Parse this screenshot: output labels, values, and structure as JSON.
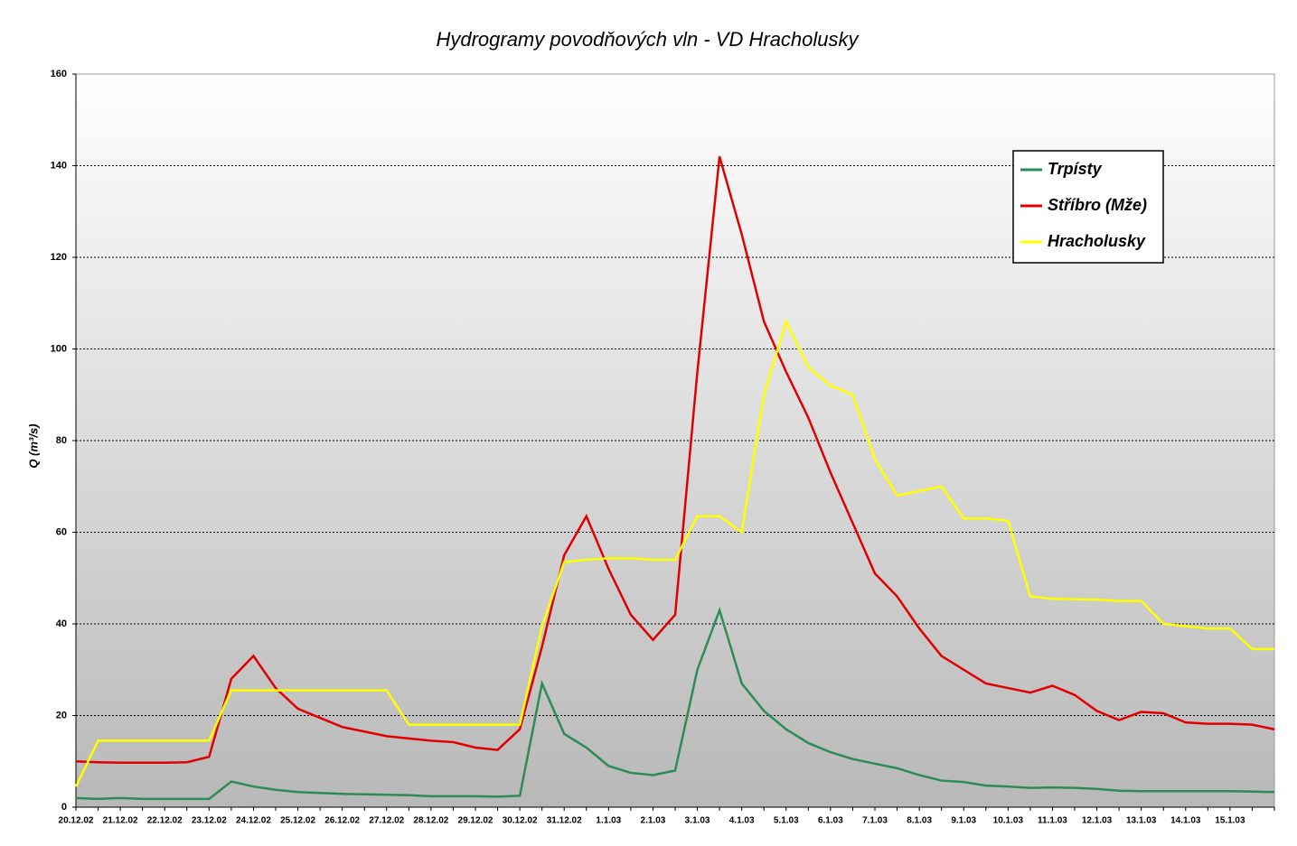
{
  "chart_data": {
    "type": "line",
    "title": "Hydrogramy povodňových vln - VD Hracholusky",
    "y_label": "Q (m³/s)",
    "categories": [
      "20.12.02",
      null,
      "21.12.02",
      null,
      "22.12.02",
      null,
      "23.12.02",
      null,
      "24.12.02",
      null,
      "25.12.02",
      null,
      "26.12.02",
      null,
      "27.12.02",
      null,
      "28.12.02",
      null,
      "29.12.02",
      null,
      "30.12.02",
      null,
      "31.12.02",
      null,
      "1.1.03",
      null,
      "2.1.03",
      null,
      "3.1.03",
      null,
      "4.1.03",
      null,
      "5.1.03",
      null,
      "6.1.03",
      null,
      "7.1.03",
      null,
      "8.1.03",
      null,
      "9.1.03",
      null,
      "10.1.03",
      null,
      "11.1.03",
      null,
      "12.1.03",
      null,
      "13.1.03",
      null,
      "14.1.03",
      null,
      "15.1.03",
      null,
      null
    ],
    "series": [
      {
        "name": "Trpísty",
        "color": "#2e8b57",
        "values": [
          2,
          1.8,
          2,
          1.8,
          1.8,
          1.8,
          1.8,
          5.6,
          4.5,
          3.8,
          3.3,
          3.1,
          2.9,
          2.8,
          2.7,
          2.6,
          2.4,
          2.4,
          2.4,
          2.3,
          2.5,
          27,
          16,
          13,
          9,
          7.5,
          7,
          8,
          30,
          43,
          27,
          21,
          17,
          14,
          12,
          10.5,
          9.5,
          8.5,
          7,
          5.8,
          5.5,
          4.7,
          4.5,
          4.2,
          4.3,
          4.2,
          4,
          3.6,
          3.5,
          3.5,
          3.5,
          3.5,
          3.5,
          3.4,
          3.3
        ]
      },
      {
        "name": "Stříbro (Mže)",
        "color": "#e00000",
        "values": [
          10,
          9.8,
          9.7,
          9.7,
          9.7,
          9.8,
          11,
          28,
          33,
          26,
          21.5,
          19.5,
          17.5,
          16.5,
          15.5,
          15,
          14.5,
          14.2,
          13,
          12.5,
          17,
          35,
          55,
          63.5,
          52,
          42,
          36.5,
          42,
          95,
          142,
          125,
          106,
          95,
          85,
          73,
          62,
          51,
          46,
          39,
          33,
          30,
          27,
          26,
          25,
          26.5,
          24.5,
          21,
          19,
          20.8,
          20.5,
          18.5,
          18.2,
          18.2,
          18,
          17
        ]
      },
      {
        "name": "Hracholusky",
        "color": "#ffff00",
        "values": [
          4.5,
          14.5,
          14.5,
          14.5,
          14.5,
          14.5,
          14.5,
          25.5,
          25.5,
          25.5,
          25.5,
          25.5,
          25.5,
          25.5,
          25.5,
          18,
          18,
          18,
          18,
          18,
          18,
          39.5,
          53.5,
          54,
          54.3,
          54.3,
          54,
          54,
          63.5,
          63.5,
          60,
          90,
          106,
          96,
          92,
          90,
          76,
          68,
          69,
          70,
          63,
          63,
          62.5,
          46,
          45.5,
          45.4,
          45.3,
          45,
          45,
          40,
          39.5,
          39,
          39,
          34.5,
          34.5
        ]
      }
    ],
    "ylim": [
      0,
      160
    ],
    "yticks": [
      0,
      20,
      40,
      60,
      80,
      100,
      120,
      140,
      160
    ],
    "grid": true,
    "legend": "upper right"
  }
}
